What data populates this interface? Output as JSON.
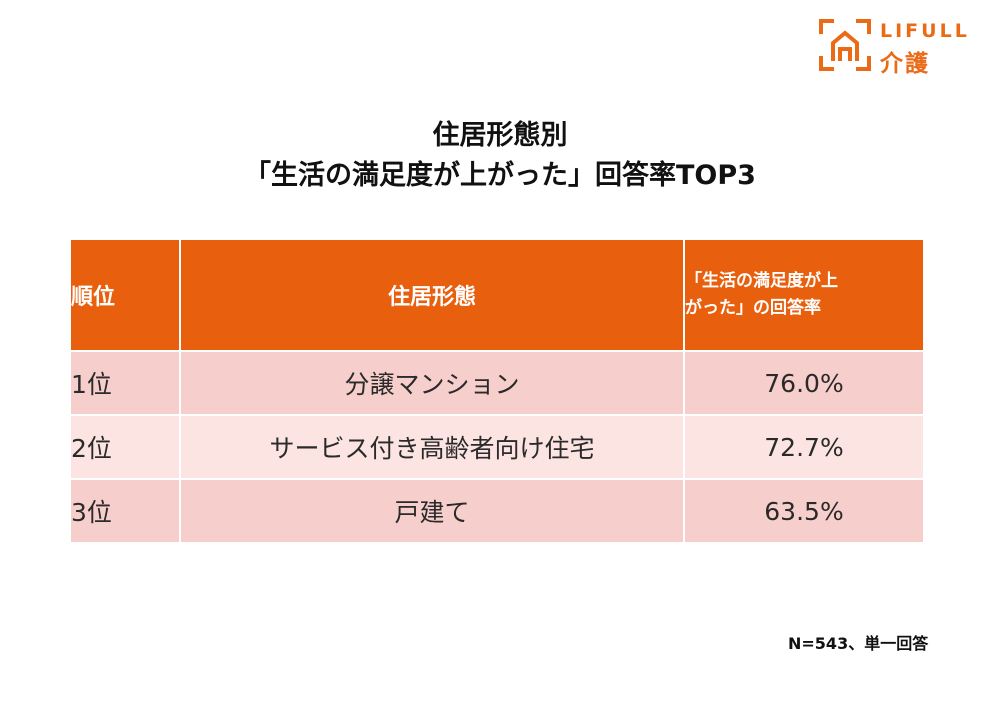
{
  "logo": {
    "brand": "LIFULL",
    "service": "介護",
    "color": "#ea6a16"
  },
  "title": {
    "line1": "住居形態別",
    "line2": "「生活の満足度が上がった」回答率TOP3"
  },
  "chart_data": {
    "type": "table",
    "columns": [
      "順位",
      "住居形態",
      "「生活の満足度が上がった」の回答率"
    ],
    "header_lines": {
      "rate_line1": "「生活の満足度が上",
      "rate_line2": "がった」の回答率"
    },
    "rows": [
      {
        "rank": "1位",
        "type": "分譲マンション",
        "rate": "76.0%",
        "value": 76.0
      },
      {
        "rank": "2位",
        "type": "サービス付き高齢者向け住宅",
        "rate": "72.7%",
        "value": 72.7
      },
      {
        "rank": "3位",
        "type": "戸建て",
        "rate": "63.5%",
        "value": 63.5
      }
    ],
    "colors": {
      "header": "#e8600e",
      "row_odd": "#f6cfcc",
      "row_even": "#fbe4e1"
    }
  },
  "footnote": "N=543、単一回答"
}
